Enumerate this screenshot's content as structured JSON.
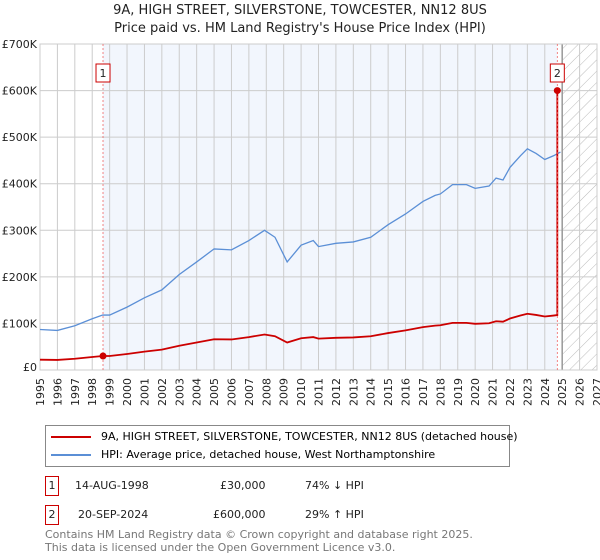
{
  "title": "9A, HIGH STREET, SILVERSTONE, TOWCESTER, NN12 8US",
  "subtitle": "Price paid vs. HM Land Registry's House Price Index (HPI)",
  "chart_data": {
    "type": "line",
    "title": "9A, HIGH STREET, SILVERSTONE, TOWCESTER, NN12 8US",
    "subtitle": "Price paid vs. HM Land Registry's House Price Index (HPI)",
    "xlim": [
      1995,
      2027
    ],
    "ylim": [
      0,
      700000
    ],
    "x_ticks": [
      "1995",
      "1996",
      "1997",
      "1998",
      "1999",
      "2000",
      "2001",
      "2002",
      "2003",
      "2004",
      "2005",
      "2006",
      "2007",
      "2008",
      "2009",
      "2010",
      "2011",
      "2012",
      "2013",
      "2014",
      "2015",
      "2016",
      "2017",
      "2018",
      "2019",
      "2020",
      "2021",
      "2022",
      "2023",
      "2024",
      "2025",
      "2026",
      "2027"
    ],
    "y_ticks": [
      {
        "v": 0,
        "l": "£0"
      },
      {
        "v": 100000,
        "l": "£100K"
      },
      {
        "v": 200000,
        "l": "£200K"
      },
      {
        "v": 300000,
        "l": "£300K"
      },
      {
        "v": 400000,
        "l": "£400K"
      },
      {
        "v": 500000,
        "l": "£500K"
      },
      {
        "v": 600000,
        "l": "£600K"
      },
      {
        "v": 700000,
        "l": "£700K"
      }
    ],
    "grid": true,
    "series": [
      {
        "name": "HPI: Average price, detached house, West Northamptonshire",
        "color": "#5b8fd6",
        "x": [
          1995,
          1996,
          1997,
          1998,
          1998.6,
          1999,
          2000,
          2001,
          2002,
          2003,
          2004,
          2005,
          2006,
          2007,
          2007.9,
          2008.5,
          2009.2,
          2010,
          2010.7,
          2011,
          2012,
          2013,
          2014,
          2015,
          2016,
          2017,
          2017.7,
          2018,
          2018.7,
          2019.5,
          2020,
          2020.8,
          2021.2,
          2021.6,
          2022,
          2022.6,
          2023,
          2023.5,
          2024,
          2024.5,
          2024.9
        ],
        "y": [
          87000,
          85000,
          95000,
          110000,
          118000,
          118000,
          135000,
          155000,
          172000,
          205000,
          232000,
          260000,
          258000,
          278000,
          300000,
          285000,
          232000,
          268000,
          278000,
          265000,
          272000,
          275000,
          285000,
          312000,
          335000,
          362000,
          375000,
          378000,
          398000,
          398000,
          390000,
          395000,
          412000,
          408000,
          435000,
          460000,
          475000,
          465000,
          452000,
          460000,
          468000
        ]
      },
      {
        "name": "9A, HIGH STREET, SILVERSTONE, TOWCESTER, NN12 8US (detached house)",
        "color": "#cc0000",
        "hpi_ratio_before_2nd_sale": 0.2542
      }
    ],
    "sales": [
      {
        "n": "1",
        "x": 1998.62,
        "date": "14-AUG-1998",
        "price": 30000,
        "price_label": "£30,000",
        "hpi": "74% ↓ HPI"
      },
      {
        "n": "2",
        "x": 2024.72,
        "date": "20-SEP-2024",
        "price": 600000,
        "price_label": "£600,000",
        "hpi": "29% ↑ HPI"
      }
    ],
    "shaded_from": 1998.62,
    "shaded_to": 2024.72,
    "hatched_from": 2025
  },
  "footer": [
    "Contains HM Land Registry data © Crown copyright and database right 2025.",
    "This data is licensed under the Open Government Licence v3.0."
  ]
}
